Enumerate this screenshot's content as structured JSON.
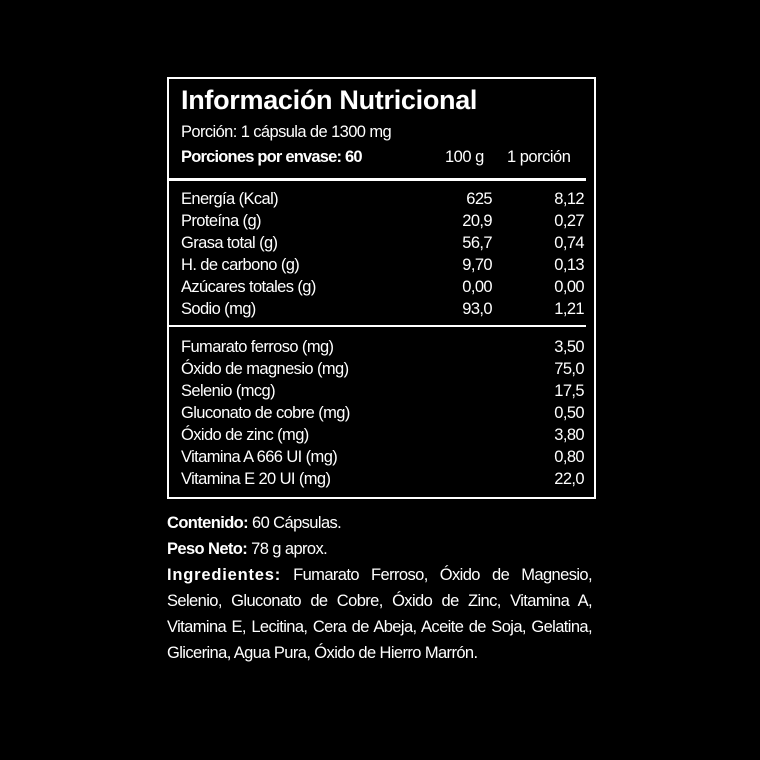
{
  "panel": {
    "title": "Información Nutricional",
    "portion": "Porción: 1 cápsula de 1300 mg",
    "servings": "Porciones por envase: 60",
    "col_100g": "100 g",
    "col_portion": "1 porción"
  },
  "macros": [
    {
      "name": "Energía (Kcal)",
      "per100": "625",
      "perPortion": "8,12"
    },
    {
      "name": "Proteína (g)",
      "per100": "20,9",
      "perPortion": "0,27"
    },
    {
      "name": "Grasa total (g)",
      "per100": "56,7",
      "perPortion": "0,74"
    },
    {
      "name": "H. de carbono (g)",
      "per100": "9,70",
      "perPortion": "0,13"
    },
    {
      "name": "Azúcares totales (g)",
      "per100": "0,00",
      "perPortion": "0,00"
    },
    {
      "name": "Sodio (mg)",
      "per100": "93,0",
      "perPortion": "1,21"
    }
  ],
  "micros": [
    {
      "name": "Fumarato ferroso (mg)",
      "perPortion": "3,50"
    },
    {
      "name": "Óxido de magnesio (mg)",
      "perPortion": "75,0"
    },
    {
      "name": "Selenio (mcg)",
      "perPortion": "17,5"
    },
    {
      "name": "Gluconato de cobre (mg)",
      "perPortion": "0,50"
    },
    {
      "name": "Óxido de zinc (mg)",
      "perPortion": "3,80"
    },
    {
      "name": "Vitamina A 666 UI (mg)",
      "perPortion": "0,80"
    },
    {
      "name": "Vitamina E 20 UI (mg)",
      "perPortion": "22,0"
    }
  ],
  "info": {
    "content_label": "Contenido:",
    "content_value": " 60 Cápsulas.",
    "weight_label": "Peso Neto:",
    "weight_value": " 78 g aprox.",
    "ingredients_label": "Ingredientes:",
    "ingredients_value": " Fumarato Ferroso, Óxido de Magnesio, Selenio, Gluconato de Cobre, Óxido de Zinc, Vitamina A, Vitamina E, Lecitina, Cera de Abeja, Aceite de Soja, Gelatina, Glicerina, Agua Pura, Óxido de Hierro Marrón."
  }
}
